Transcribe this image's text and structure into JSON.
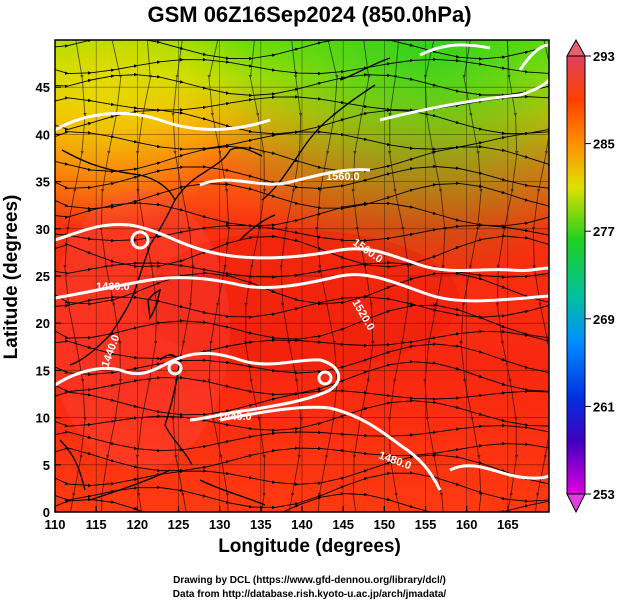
{
  "title": "GSM 06Z16Sep2024 (850.0hPa)",
  "xaxis": {
    "label": "Longitude (degrees)",
    "ticks": [
      "110",
      "115",
      "120",
      "125",
      "130",
      "135",
      "140",
      "145",
      "150",
      "155",
      "160",
      "165"
    ],
    "range": [
      110,
      170
    ]
  },
  "yaxis": {
    "label": "Latitude  (degrees)",
    "ticks": [
      "0",
      "5",
      "10",
      "15",
      "20",
      "25",
      "30",
      "35",
      "40",
      "45"
    ],
    "range": [
      0,
      50
    ]
  },
  "colorbar": {
    "ticks": [
      "293",
      "285",
      "277",
      "269",
      "261",
      "253"
    ],
    "range": [
      253,
      293
    ]
  },
  "contour_labels": [
    "1560.0",
    "1560.0",
    "1520.0",
    "1480.0",
    "1440.0",
    "1440.0",
    "1480.0"
  ],
  "credits": {
    "line1": "Drawing by DCL (https://www.gfd-dennou.org/library/dcl/)",
    "line2": "Data from http://database.rish.kyoto-u.ac.jp/arch/jmadata/"
  }
}
